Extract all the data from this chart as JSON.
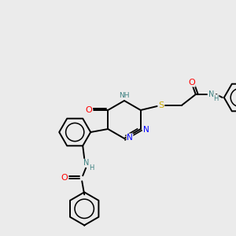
{
  "bg_color": "#ebebeb",
  "atom_colors": {
    "C": "#000000",
    "N": "#0000ff",
    "O": "#ff0000",
    "S": "#ccaa00",
    "NH": "#3d8080"
  },
  "bond_color": "#000000",
  "figsize": [
    3.0,
    3.0
  ],
  "dpi": 100
}
